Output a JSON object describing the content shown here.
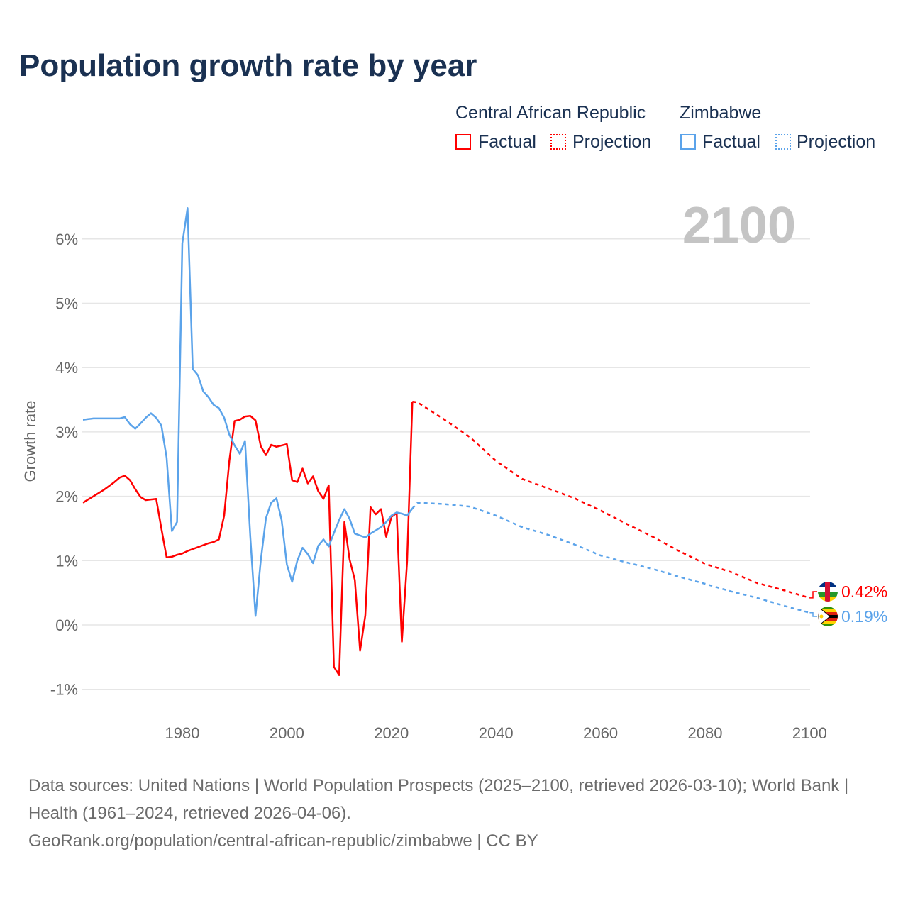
{
  "title": "Population growth rate by year",
  "legend": {
    "groups": [
      {
        "country": "Central African Republic",
        "factual": "Factual",
        "projection": "Projection",
        "color": "#ff0000"
      },
      {
        "country": "Zimbabwe",
        "factual": "Factual",
        "projection": "Projection",
        "color": "#5ba3ea"
      }
    ]
  },
  "year_label": "2100",
  "footer": {
    "sources": "Data sources: United Nations | World Population Prospects (2025–2100, retrieved 2026-03-10); World Bank | Health (1961–2024, retrieved 2026-04-06).",
    "link": "GeoRank.org/population/central-african-republic/zimbabwe | CC BY"
  },
  "chart_data": {
    "type": "line",
    "title": "Population growth rate by year",
    "xlabel": "",
    "ylabel": "Growth rate",
    "xlim": [
      1961,
      2100
    ],
    "ylim": [
      -1.1,
      6.6
    ],
    "xticks": [
      1980,
      2000,
      2020,
      2040,
      2060,
      2080,
      2100
    ],
    "xtick_labels": [
      "1980",
      "2000",
      "2020",
      "2040",
      "2060",
      "2080",
      "2100"
    ],
    "yticks": [
      -1,
      0,
      1,
      2,
      3,
      4,
      5,
      6
    ],
    "ytick_labels": [
      "-1%",
      "0%",
      "1%",
      "2%",
      "3%",
      "4%",
      "5%",
      "6%"
    ],
    "grid": true,
    "series": [
      {
        "name": "Central African Republic",
        "kind": "Factual",
        "color": "#ff0000",
        "start": 1961,
        "values": [
          1.9,
          1.95,
          2.0,
          2.05,
          2.1,
          2.16,
          2.22,
          2.29,
          2.32,
          2.25,
          2.11,
          1.99,
          1.94,
          1.95,
          1.96,
          1.5,
          1.05,
          1.06,
          1.09,
          1.11,
          1.15,
          1.18,
          1.21,
          1.24,
          1.27,
          1.29,
          1.33,
          1.7,
          2.55,
          3.17,
          3.19,
          3.24,
          3.25,
          3.18,
          2.78,
          2.64,
          2.8,
          2.77,
          2.79,
          2.81,
          2.25,
          2.22,
          2.43,
          2.2,
          2.31,
          2.08,
          1.96,
          2.17,
          -0.65,
          -0.78,
          1.6,
          1.02,
          0.7,
          -0.4,
          0.15,
          1.83,
          1.72,
          1.8,
          1.37,
          1.68,
          1.74,
          -0.26,
          0.99,
          3.47
        ]
      },
      {
        "name": "Central African Republic",
        "kind": "Projection",
        "color": "#ff0000",
        "x": [
          2024,
          2025,
          2030,
          2035,
          2040,
          2045,
          2050,
          2055,
          2060,
          2065,
          2070,
          2075,
          2080,
          2085,
          2090,
          2095,
          2100
        ],
        "values": [
          3.47,
          3.46,
          3.2,
          2.92,
          2.55,
          2.27,
          2.12,
          1.97,
          1.78,
          1.57,
          1.37,
          1.15,
          0.95,
          0.82,
          0.65,
          0.54,
          0.42
        ],
        "end_label": "0.42%"
      },
      {
        "name": "Zimbabwe",
        "kind": "Factual",
        "color": "#5ba3ea",
        "start": 1961,
        "values": [
          3.19,
          3.2,
          3.21,
          3.21,
          3.21,
          3.21,
          3.21,
          3.21,
          3.23,
          3.12,
          3.05,
          3.13,
          3.22,
          3.29,
          3.22,
          3.1,
          2.6,
          1.46,
          1.6,
          5.93,
          6.48,
          3.98,
          3.88,
          3.63,
          3.54,
          3.42,
          3.37,
          3.22,
          2.96,
          2.79,
          2.66,
          2.86,
          1.38,
          0.14,
          1.0,
          1.66,
          1.9,
          1.97,
          1.63,
          0.94,
          0.67,
          1.0,
          1.2,
          1.1,
          0.96,
          1.23,
          1.33,
          1.22,
          1.43,
          1.63,
          1.8,
          1.65,
          1.42,
          1.39,
          1.36,
          1.42,
          1.47,
          1.52,
          1.6,
          1.7,
          1.75,
          1.73,
          1.7,
          1.81
        ]
      },
      {
        "name": "Zimbabwe",
        "kind": "Projection",
        "color": "#5ba3ea",
        "x": [
          2024,
          2025,
          2030,
          2035,
          2040,
          2045,
          2050,
          2055,
          2060,
          2065,
          2070,
          2075,
          2080,
          2085,
          2090,
          2095,
          2100
        ],
        "values": [
          1.81,
          1.9,
          1.88,
          1.84,
          1.7,
          1.52,
          1.4,
          1.25,
          1.08,
          0.97,
          0.87,
          0.75,
          0.64,
          0.52,
          0.42,
          0.3,
          0.19
        ],
        "end_label": "0.19%"
      }
    ]
  }
}
